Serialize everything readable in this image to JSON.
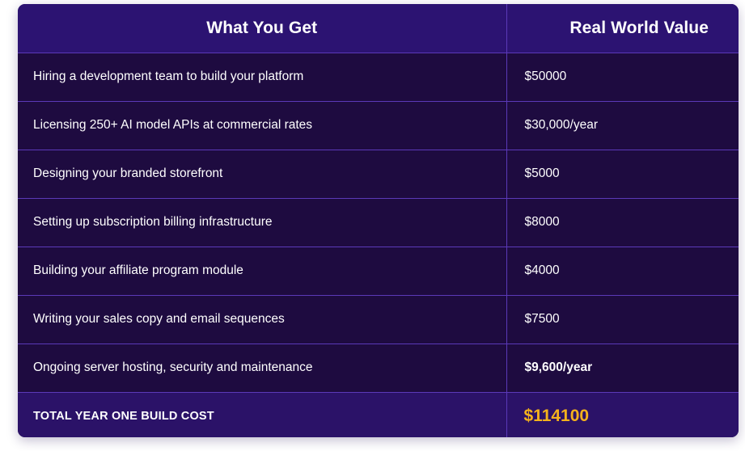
{
  "headers": {
    "left": "What You Get",
    "right": "Real World Value"
  },
  "rows": [
    {
      "item": "Hiring a development team to build your platform",
      "value": "$50000",
      "bold": false
    },
    {
      "item": "Licensing 250+ AI model APIs at commercial rates",
      "value": "$30,000/year",
      "bold": false
    },
    {
      "item": "Designing your branded storefront",
      "value": "$5000",
      "bold": false
    },
    {
      "item": "Setting up subscription billing infrastructure",
      "value": "$8000",
      "bold": false
    },
    {
      "item": "Building your affiliate program module",
      "value": "$4000",
      "bold": false
    },
    {
      "item": "Writing your sales copy and email sequences",
      "value": "$7500",
      "bold": false
    },
    {
      "item": "Ongoing server hosting, security and maintenance",
      "value": "$9,600/year",
      "bold": true
    }
  ],
  "total": {
    "label": "TOTAL YEAR ONE BUILD COST",
    "value": "$114100"
  },
  "colors": {
    "background": "#1f0d45",
    "header_background": "#2c1372",
    "row_background": "#1e0b40",
    "total_background": "#2b1268",
    "border": "#5b39b8",
    "total_value": "#f5b21c",
    "text": "#ffffff"
  }
}
